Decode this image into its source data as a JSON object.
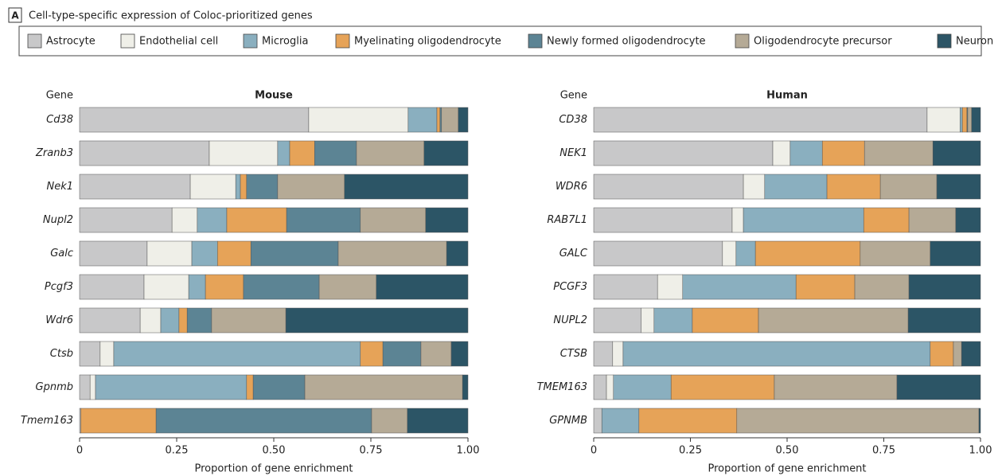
{
  "panel_label": "A",
  "heading": "Cell-type-specific expression of Coloc-prioritized genes",
  "chart_data": [
    {
      "type": "stacked-barh",
      "title": "Mouse",
      "y_label": "Gene",
      "x_label": "Proportion of gene enrichment",
      "categories": [
        "Cd38",
        "Zranb3",
        "Nek1",
        "Nupl2",
        "Galc",
        "Pcgf3",
        "Wdr6",
        "Ctsb",
        "Gpnmb",
        "Tmem163"
      ],
      "xlim": [
        0,
        1
      ],
      "xticks": [
        0,
        0.25,
        {
          "value": 0.5,
          "label": "0.50"
        },
        0.75,
        {
          "value": 1,
          "label": "1.00"
        }
      ],
      "series": [
        {
          "name": "Astrocyte",
          "color": "#c8c8c9",
          "values": [
            0.59,
            0.334,
            0.285,
            0.238,
            0.174,
            0.166,
            0.156,
            0.053,
            0.027,
            0.003
          ]
        },
        {
          "name": "Endothelial cell",
          "color": "#efefe8",
          "values": [
            0.256,
            0.176,
            0.117,
            0.065,
            0.115,
            0.115,
            0.053,
            0.035,
            0.014,
            0
          ]
        },
        {
          "name": "Microglia",
          "color": "#8aafbf",
          "values": [
            0.074,
            0.031,
            0.012,
            0.076,
            0.066,
            0.043,
            0.047,
            0.635,
            0.389,
            0
          ]
        },
        {
          "name": "Myelinating oligodendrocyte",
          "color": "#e6a358",
          "values": [
            0.008,
            0.064,
            0.016,
            0.154,
            0.086,
            0.098,
            0.021,
            0.058,
            0.017,
            0.194
          ]
        },
        {
          "name": "Newly formed oligodendrocyte",
          "color": "#5c8494",
          "values": [
            0.004,
            0.108,
            0.08,
            0.19,
            0.225,
            0.195,
            0.063,
            0.098,
            0.133,
            0.555
          ]
        },
        {
          "name": "Oligodendrocyte precursor",
          "color": "#b5aa96",
          "values": [
            0.043,
            0.174,
            0.172,
            0.168,
            0.279,
            0.147,
            0.191,
            0.078,
            0.406,
            0.092
          ]
        },
        {
          "name": "Neuron",
          "color": "#2c5566",
          "values": [
            0.025,
            0.113,
            0.318,
            0.109,
            0.055,
            0.236,
            0.469,
            0.043,
            0.014,
            0.156
          ]
        }
      ]
    },
    {
      "type": "stacked-barh",
      "title": "Human",
      "y_label": "Gene",
      "x_label": "Proportion of gene enrichment",
      "categories": [
        "CD38",
        "NEK1",
        "WDR6",
        "RAB7L1",
        "GALC",
        "PCGF3",
        "NUPL2",
        "CTSB",
        "TMEM163",
        "GPNMB"
      ],
      "xlim": [
        0,
        1
      ],
      "xticks": [
        0,
        0.25,
        {
          "value": 0.5,
          "label": "0.50"
        },
        0.75,
        {
          "value": 1,
          "label": "1.00"
        }
      ],
      "series": [
        {
          "color": "#c8c8c9",
          "values": [
            0.862,
            0.463,
            0.387,
            0.358,
            0.333,
            0.165,
            0.123,
            0.049,
            0.033,
            0.021
          ]
        },
        {
          "color": "#efefe8",
          "values": [
            0.085,
            0.045,
            0.055,
            0.029,
            0.035,
            0.065,
            0.033,
            0.027,
            0.018,
            0
          ]
        },
        {
          "color": "#8aafbf",
          "values": [
            0.006,
            0.083,
            0.161,
            0.311,
            0.05,
            0.293,
            0.099,
            0.794,
            0.149,
            0.096
          ]
        },
        {
          "color": "#e6a358",
          "values": [
            0.012,
            0.109,
            0.138,
            0.117,
            0.271,
            0.152,
            0.171,
            0.06,
            0.267,
            0.253
          ]
        },
        {
          "color": "#5c8494",
          "values": [
            0.002,
            0,
            0,
            0,
            0,
            0,
            0,
            0,
            0,
            0
          ]
        },
        {
          "color": "#b5aa96",
          "values": [
            0.01,
            0.177,
            0.146,
            0.121,
            0.181,
            0.14,
            0.387,
            0.021,
            0.317,
            0.626
          ]
        },
        {
          "color": "#2c5566",
          "values": [
            0.023,
            0.123,
            0.113,
            0.064,
            0.13,
            0.185,
            0.187,
            0.049,
            0.216,
            0.004
          ]
        }
      ]
    }
  ]
}
